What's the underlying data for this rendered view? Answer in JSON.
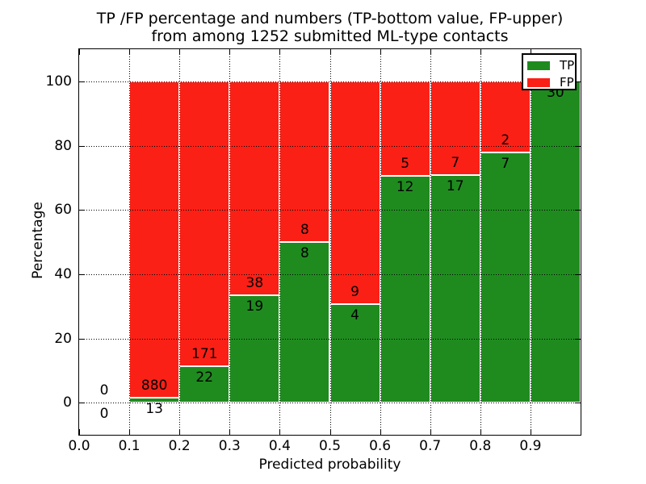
{
  "figure": {
    "title_line1": "TP /FP percentage and numbers (TP-bottom value, FP-upper)",
    "title_line2": "from among 1252 submitted ML-type contacts",
    "xlabel": "Predicted probability",
    "ylabel": "Percentage"
  },
  "legend": {
    "position": "upper right",
    "items": [
      {
        "label": "TP",
        "color": "#1f8b1f"
      },
      {
        "label": "FP",
        "color": "#fb2016"
      }
    ]
  },
  "colors": {
    "tp": "#1f8b1f",
    "fp": "#fb2016",
    "grid": "#000000",
    "axis": "#000000",
    "background": "#ffffff"
  },
  "chart_data": {
    "type": "bar",
    "stacked": true,
    "units": "percent",
    "title": "TP /FP percentage and numbers (TP-bottom value, FP-upper)\nfrom among 1252 submitted ML-type contacts",
    "xlabel": "Predicted probability",
    "ylabel": "Percentage",
    "xlim": [
      0.0,
      1.0
    ],
    "ylim": [
      -10,
      110
    ],
    "grid": true,
    "legend_position": "upper right",
    "total_contacts": 1252,
    "series": [
      {
        "name": "TP",
        "color": "#1f8b1f"
      },
      {
        "name": "FP",
        "color": "#fb2016"
      }
    ],
    "x_ticks": [
      {
        "pos": 0.0,
        "label": "0.0"
      },
      {
        "pos": 0.1,
        "label": "0.1"
      },
      {
        "pos": 0.2,
        "label": "0.2"
      },
      {
        "pos": 0.3,
        "label": "0.3"
      },
      {
        "pos": 0.4,
        "label": "0.4"
      },
      {
        "pos": 0.5,
        "label": "0.5"
      },
      {
        "pos": 0.6,
        "label": "0.6"
      },
      {
        "pos": 0.7,
        "label": "0.7"
      },
      {
        "pos": 0.8,
        "label": "0.8"
      },
      {
        "pos": 0.9,
        "label": "0.9"
      }
    ],
    "y_ticks": [
      {
        "pos": 0,
        "label": "0"
      },
      {
        "pos": 20,
        "label": "20"
      },
      {
        "pos": 40,
        "label": "40"
      },
      {
        "pos": 60,
        "label": "60"
      },
      {
        "pos": 80,
        "label": "80"
      },
      {
        "pos": 100,
        "label": "100"
      }
    ],
    "bins": [
      {
        "range": [
          0.0,
          0.1
        ],
        "tp": 0,
        "fp": 0,
        "tp_pct": null
      },
      {
        "range": [
          0.1,
          0.2
        ],
        "tp": 13,
        "fp": 880,
        "tp_pct": 1.46
      },
      {
        "range": [
          0.2,
          0.3
        ],
        "tp": 22,
        "fp": 171,
        "tp_pct": 11.4
      },
      {
        "range": [
          0.3,
          0.4
        ],
        "tp": 19,
        "fp": 38,
        "tp_pct": 33.33
      },
      {
        "range": [
          0.4,
          0.5
        ],
        "tp": 8,
        "fp": 8,
        "tp_pct": 50.0
      },
      {
        "range": [
          0.5,
          0.6
        ],
        "tp": 4,
        "fp": 9,
        "tp_pct": 30.77
      },
      {
        "range": [
          0.6,
          0.7
        ],
        "tp": 12,
        "fp": 5,
        "tp_pct": 70.59
      },
      {
        "range": [
          0.7,
          0.8
        ],
        "tp": 17,
        "fp": 7,
        "tp_pct": 70.83
      },
      {
        "range": [
          0.8,
          0.9
        ],
        "tp": 7,
        "fp": 2,
        "tp_pct": 77.78
      },
      {
        "range": [
          0.9,
          1.0
        ],
        "tp": 30,
        "fp": 0,
        "tp_pct": 100.0
      }
    ]
  }
}
